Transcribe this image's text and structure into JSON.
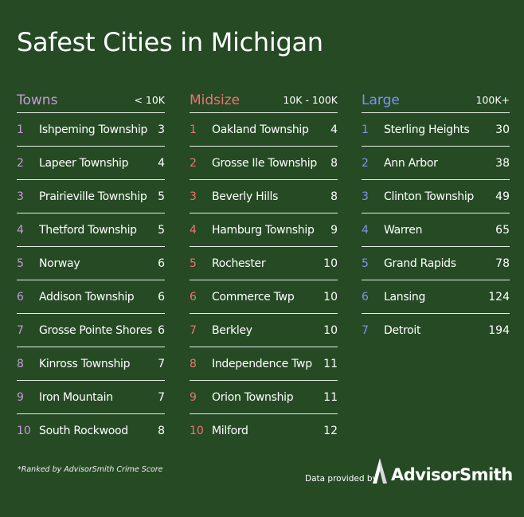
{
  "title": "Safest Cities in Michigan",
  "colors": {
    "background": "#254a24",
    "towns": "#c79ad6",
    "midsize": "#f07272",
    "large": "#7f93f0"
  },
  "chart_data": {
    "type": "table",
    "title": "Safest Cities in Michigan",
    "columns": [
      {
        "name": "Towns",
        "range": "< 10K",
        "color": "#c79ad6",
        "rows": [
          {
            "rank": "1",
            "city": "Ishpeming Township",
            "score": "3"
          },
          {
            "rank": "2",
            "city": "Lapeer Township",
            "score": "4"
          },
          {
            "rank": "3",
            "city": "Prairieville Township",
            "score": "5"
          },
          {
            "rank": "4",
            "city": "Thetford Township",
            "score": "5"
          },
          {
            "rank": "5",
            "city": "Norway",
            "score": "6"
          },
          {
            "rank": "6",
            "city": "Addison Township",
            "score": "6"
          },
          {
            "rank": "7",
            "city": "Grosse Pointe Shores",
            "score": "6"
          },
          {
            "rank": "8",
            "city": "Kinross Township",
            "score": "7"
          },
          {
            "rank": "9",
            "city": "Iron Mountain",
            "score": "7"
          },
          {
            "rank": "10",
            "city": "South Rockwood",
            "score": "8"
          }
        ]
      },
      {
        "name": "Midsize",
        "range": "10K - 100K",
        "color": "#f07272",
        "rows": [
          {
            "rank": "1",
            "city": "Oakland Township",
            "score": "4"
          },
          {
            "rank": "2",
            "city": "Grosse Ile Township",
            "score": "8"
          },
          {
            "rank": "3",
            "city": "Beverly Hills",
            "score": "8"
          },
          {
            "rank": "4",
            "city": "Hamburg Township",
            "score": "9"
          },
          {
            "rank": "5",
            "city": "Rochester",
            "score": "10"
          },
          {
            "rank": "6",
            "city": "Commerce Twp",
            "score": "10"
          },
          {
            "rank": "7",
            "city": "Berkley",
            "score": "10"
          },
          {
            "rank": "8",
            "city": "Independence Twp",
            "score": "11"
          },
          {
            "rank": "9",
            "city": "Orion Township",
            "score": "11"
          },
          {
            "rank": "10",
            "city": "Milford",
            "score": "12"
          }
        ]
      },
      {
        "name": "Large",
        "range": "100K+",
        "color": "#7f93f0",
        "rows": [
          {
            "rank": "1",
            "city": "Sterling Heights",
            "score": "30"
          },
          {
            "rank": "2",
            "city": "Ann Arbor",
            "score": "38"
          },
          {
            "rank": "3",
            "city": "Clinton Township",
            "score": "49"
          },
          {
            "rank": "4",
            "city": "Warren",
            "score": "65"
          },
          {
            "rank": "5",
            "city": "Grand Rapids",
            "score": "78"
          },
          {
            "rank": "6",
            "city": "Lansing",
            "score": "124"
          },
          {
            "rank": "7",
            "city": "Detroit",
            "score": "194"
          }
        ]
      }
    ]
  },
  "footnote": "*Ranked by AdvisorSmith Crime Score",
  "provided_by": "Data provided by",
  "brand": "AdvisorSmith",
  "brand_icon": "advisorsmith-logo-icon"
}
